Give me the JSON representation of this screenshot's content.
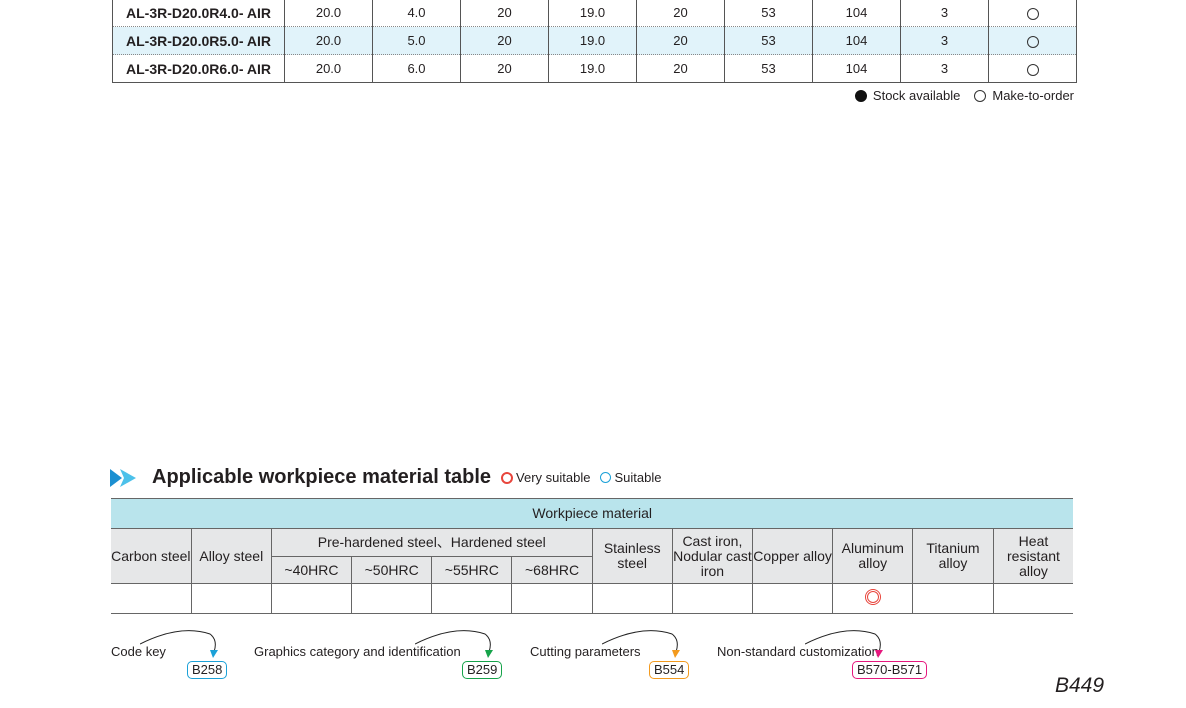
{
  "spec_table": {
    "rows": [
      {
        "code": "AL-3R-D20.0R4.0- AIR",
        "values": [
          "20.0",
          "4.0",
          "20",
          "19.0",
          "20",
          "53",
          "104",
          "3"
        ],
        "stock": "make-to-order",
        "highlight": false
      },
      {
        "code": "AL-3R-D20.0R5.0- AIR",
        "values": [
          "20.0",
          "5.0",
          "20",
          "19.0",
          "20",
          "53",
          "104",
          "3"
        ],
        "stock": "make-to-order",
        "highlight": true
      },
      {
        "code": "AL-3R-D20.0R6.0- AIR",
        "values": [
          "20.0",
          "6.0",
          "20",
          "19.0",
          "20",
          "53",
          "104",
          "3"
        ],
        "stock": "make-to-order",
        "highlight": false
      }
    ]
  },
  "legend": {
    "stock": "Stock available",
    "mto": "Make-to-order"
  },
  "material": {
    "title": "Applicable workpiece material table",
    "very_suitable": "Very suitable",
    "suitable": "Suitable",
    "header": "Workpiece material",
    "cols": {
      "carbon": "Carbon steel",
      "alloy": "Alloy steel",
      "hard": "Pre-hardened steel、Hardened steel",
      "h40": "~40HRC",
      "h50": "~50HRC",
      "h55": "~55HRC",
      "h68": "~68HRC",
      "stainless": "Stainless steel",
      "cast": "Cast iron, Nodular cast iron",
      "copper": "Copper alloy",
      "aluminum": "Aluminum alloy",
      "titanium": "Titanium alloy",
      "heat": "Heat resistant alloy"
    },
    "rating": {
      "aluminum": "very-suitable"
    }
  },
  "refs": [
    {
      "label": "Code key",
      "page": "B258",
      "color": "#1ba1d8"
    },
    {
      "label": "Graphics category and identification",
      "page": "B259",
      "color": "#16a34a"
    },
    {
      "label": "Cutting parameters",
      "page": "B554",
      "color": "#f39a1e"
    },
    {
      "label": "Non-standard customization",
      "page": "B570-B571",
      "color": "#e6187e"
    }
  ],
  "page_number": "B449"
}
